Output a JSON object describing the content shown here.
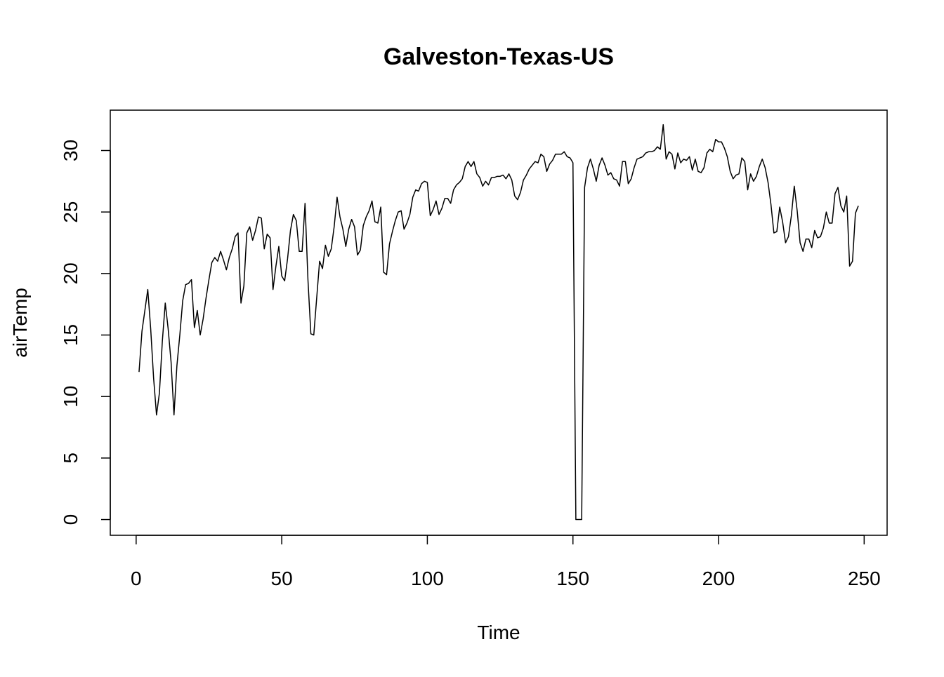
{
  "chart_data": {
    "type": "line",
    "title": "Galveston-Texas-US",
    "x_label": "Time",
    "y_label": "airTemp",
    "x": [
      1,
      2,
      3,
      4,
      5,
      6,
      7,
      8,
      9,
      10,
      11,
      12,
      13,
      14,
      15,
      16,
      17,
      18,
      19,
      20,
      21,
      22,
      23,
      24,
      25,
      26,
      27,
      28,
      29,
      30,
      31,
      32,
      33,
      34,
      35,
      36,
      37,
      38,
      39,
      40,
      41,
      42,
      43,
      44,
      45,
      46,
      47,
      48,
      49,
      50,
      51,
      52,
      53,
      54,
      55,
      56,
      57,
      58,
      59,
      60,
      61,
      62,
      63,
      64,
      65,
      66,
      67,
      68,
      69,
      70,
      71,
      72,
      73,
      74,
      75,
      76,
      77,
      78,
      79,
      80,
      81,
      82,
      83,
      84,
      85,
      86,
      87,
      88,
      89,
      90,
      91,
      92,
      93,
      94,
      95,
      96,
      97,
      98,
      99,
      100,
      101,
      102,
      103,
      104,
      105,
      106,
      107,
      108,
      109,
      110,
      111,
      112,
      113,
      114,
      115,
      116,
      117,
      118,
      119,
      120,
      121,
      122,
      123,
      124,
      125,
      126,
      127,
      128,
      129,
      130,
      131,
      132,
      133,
      134,
      135,
      136,
      137,
      138,
      139,
      140,
      141,
      142,
      143,
      144,
      145,
      146,
      147,
      148,
      149,
      150,
      151,
      152,
      153,
      154,
      155,
      156,
      157,
      158,
      159,
      160,
      161,
      162,
      163,
      164,
      165,
      166,
      167,
      168,
      169,
      170,
      171,
      172,
      173,
      174,
      175,
      176,
      177,
      178,
      179,
      180,
      181,
      182,
      183,
      184,
      185,
      186,
      187,
      188,
      189,
      190,
      191,
      192,
      193,
      194,
      195,
      196,
      197,
      198,
      199,
      200,
      201,
      202,
      203,
      204,
      205,
      206,
      207,
      208,
      209,
      210,
      211,
      212,
      213,
      214,
      215,
      216,
      217,
      218,
      219,
      220,
      221,
      222,
      223,
      224,
      225,
      226,
      227,
      228,
      229,
      230,
      231,
      232,
      233,
      234,
      235,
      236,
      237,
      238,
      239,
      240,
      241,
      242,
      243,
      244,
      245,
      246,
      247,
      248
    ],
    "values": [
      12,
      15.3,
      17,
      18.7,
      15.5,
      11.5,
      8.5,
      10.3,
      14.5,
      17.6,
      15.5,
      12.8,
      8.5,
      12.5,
      15,
      17.8,
      19.1,
      19.2,
      19.5,
      15.6,
      17,
      15,
      16.3,
      18,
      19.5,
      20.9,
      21.3,
      21,
      21.8,
      21.1,
      20.3,
      21.3,
      22,
      23,
      23.3,
      17.6,
      19,
      23.3,
      23.8,
      22.7,
      23.5,
      24.6,
      24.5,
      22,
      23.2,
      22.9,
      18.7,
      20.6,
      22.2,
      19.8,
      19.4,
      21.2,
      23.5,
      24.8,
      24.3,
      21.8,
      21.8,
      25.7,
      19.5,
      15.1,
      15,
      18,
      21,
      20.4,
      22.3,
      21.4,
      22,
      23.8,
      26.2,
      24.6,
      23.6,
      22.2,
      23.6,
      24.4,
      23.8,
      21.5,
      21.9,
      23.9,
      24.6,
      25.1,
      25.9,
      24.2,
      24.1,
      25.4,
      20.1,
      19.9,
      22.4,
      23.4,
      24.3,
      25,
      25.1,
      23.6,
      24.1,
      24.8,
      26.2,
      26.8,
      26.7,
      27.3,
      27.5,
      27.4,
      24.7,
      25.2,
      25.9,
      24.8,
      25.3,
      26.1,
      26.1,
      25.7,
      26.8,
      27.2,
      27.4,
      27.7,
      28.7,
      29.1,
      28.7,
      29.1,
      28.1,
      27.8,
      27.1,
      27.5,
      27.2,
      27.8,
      27.8,
      27.9,
      27.9,
      28,
      27.7,
      28.1,
      27.6,
      26.3,
      26,
      26.6,
      27.6,
      28,
      28.5,
      28.8,
      29.1,
      29,
      29.7,
      29.5,
      28.3,
      28.9,
      29.2,
      29.7,
      29.7,
      29.7,
      29.9,
      29.5,
      29.4,
      29,
      0,
      0,
      0,
      27,
      28.6,
      29.3,
      28.5,
      27.5,
      28.8,
      29.4,
      28.8,
      28,
      28.2,
      27.7,
      27.6,
      27.1,
      29.1,
      29.1,
      27.3,
      27.7,
      28.6,
      29.3,
      29.4,
      29.5,
      29.8,
      29.9,
      29.9,
      30,
      30.3,
      30.1,
      32.1,
      29.3,
      29.9,
      29.7,
      28.5,
      29.8,
      29,
      29.3,
      29.2,
      29.5,
      28.4,
      29.3,
      28.3,
      28.2,
      28.6,
      29.8,
      30.1,
      29.9,
      30.9,
      30.7,
      30.7,
      30.2,
      29.5,
      28.3,
      27.7,
      28,
      28.1,
      29.4,
      29.1,
      26.8,
      28.1,
      27.5,
      27.9,
      28.7,
      29.3,
      28.6,
      27.4,
      25.6,
      23.3,
      23.4,
      25.4,
      24.2,
      22.5,
      23,
      24.7,
      27.1,
      25.1,
      22.5,
      21.8,
      22.8,
      22.8,
      22.1,
      23.5,
      22.9,
      23,
      23.7,
      25,
      24.1,
      24.1,
      26.5,
      27,
      25.5,
      25,
      26.3,
      20.6,
      21,
      24.9,
      25.5
    ],
    "color": "#000000",
    "xlim": [
      -8.88,
      257.88
    ],
    "ylim": [
      -1.28,
      33.28
    ],
    "xticks": [
      0,
      50,
      100,
      150,
      200,
      250
    ],
    "yticks": [
      0,
      5,
      10,
      15,
      20,
      25,
      30
    ]
  }
}
